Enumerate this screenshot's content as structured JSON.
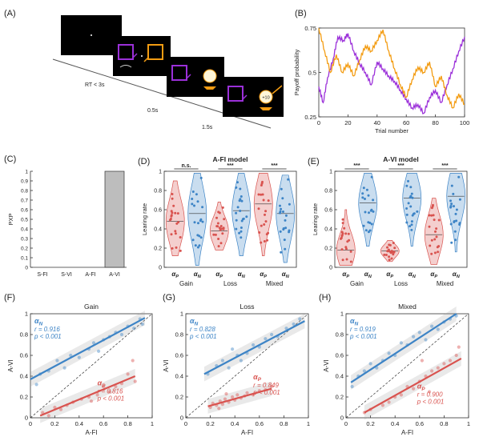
{
  "panel_letters": [
    "(A)",
    "(B)",
    "(C)",
    "(D)",
    "(E)",
    "(F)",
    "(G)",
    "(H)"
  ],
  "panelA": {
    "timings": [
      "RT < 3s",
      "0.5s",
      "1.5s"
    ],
    "reward_value": "+10",
    "colors": {
      "purple": "#9b30d9",
      "orange": "#f39c12",
      "screen": "#000000"
    }
  },
  "chart_data": [
    {
      "id": "B",
      "type": "line",
      "title": "",
      "xlabel": "Trial number",
      "ylabel": "Payoff probability",
      "xlim": [
        0,
        100
      ],
      "ylim": [
        0.25,
        0.75
      ],
      "xticks": [
        "0",
        "20",
        "40",
        "60",
        "80",
        "100"
      ],
      "yticks": [
        "0.25",
        "0.5",
        "0.75"
      ],
      "series": [
        {
          "color": "#9b30d9",
          "values": [
            [
              0,
              0.42
            ],
            [
              3,
              0.33
            ],
            [
              6,
              0.47
            ],
            [
              10,
              0.58
            ],
            [
              13,
              0.7
            ],
            [
              17,
              0.68
            ],
            [
              20,
              0.72
            ],
            [
              24,
              0.62
            ],
            [
              28,
              0.55
            ],
            [
              32,
              0.5
            ],
            [
              36,
              0.43
            ],
            [
              40,
              0.56
            ],
            [
              44,
              0.52
            ],
            [
              48,
              0.48
            ],
            [
              52,
              0.45
            ],
            [
              56,
              0.4
            ],
            [
              60,
              0.35
            ],
            [
              64,
              0.3
            ],
            [
              68,
              0.32
            ],
            [
              72,
              0.27
            ],
            [
              76,
              0.36
            ],
            [
              80,
              0.4
            ],
            [
              84,
              0.33
            ],
            [
              88,
              0.43
            ],
            [
              92,
              0.52
            ],
            [
              96,
              0.62
            ],
            [
              100,
              0.7
            ]
          ]
        },
        {
          "color": "#f39c12",
          "values": [
            [
              0,
              0.75
            ],
            [
              4,
              0.62
            ],
            [
              8,
              0.5
            ],
            [
              12,
              0.6
            ],
            [
              16,
              0.5
            ],
            [
              20,
              0.55
            ],
            [
              24,
              0.48
            ],
            [
              28,
              0.57
            ],
            [
              32,
              0.65
            ],
            [
              36,
              0.62
            ],
            [
              40,
              0.68
            ],
            [
              44,
              0.74
            ],
            [
              48,
              0.62
            ],
            [
              52,
              0.52
            ],
            [
              56,
              0.43
            ],
            [
              60,
              0.36
            ],
            [
              64,
              0.46
            ],
            [
              68,
              0.53
            ],
            [
              72,
              0.5
            ],
            [
              76,
              0.56
            ],
            [
              80,
              0.42
            ],
            [
              84,
              0.48
            ],
            [
              88,
              0.37
            ],
            [
              92,
              0.3
            ],
            [
              96,
              0.38
            ],
            [
              100,
              0.32
            ]
          ]
        }
      ]
    },
    {
      "id": "C",
      "type": "bar",
      "title": "",
      "xlabel": "",
      "ylabel": "PXP",
      "ylim": [
        0,
        1
      ],
      "yticks": [
        "0",
        "0.1",
        "0.2",
        "0.3",
        "0.4",
        "0.5",
        "0.6",
        "0.7",
        "0.8",
        "0.9",
        "1"
      ],
      "categories": [
        "S-FI",
        "S-VI",
        "A-FI",
        "A-VI"
      ],
      "values": [
        0.0,
        0.0,
        0.0,
        1.0
      ],
      "bar_color": "#bdbdbd"
    },
    {
      "id": "D",
      "type": "violin",
      "title": "A-FI model",
      "xlabel": "",
      "ylabel": "Learing rate",
      "ylim": [
        0,
        1
      ],
      "yticks": [
        "0",
        "0.2",
        "0.4",
        "0.6",
        "0.8",
        "1"
      ],
      "groups": [
        "Gain",
        "Loss",
        "Mixed"
      ],
      "params": [
        "αP",
        "αN"
      ],
      "significance": [
        "n.s.",
        "***",
        "***"
      ],
      "colors": {
        "αP": "#d9534f",
        "αN": "#3d84c6"
      },
      "medians": [
        0.48,
        0.56,
        0.38,
        0.59,
        0.66,
        0.56
      ],
      "ranges": [
        [
          0.12,
          0.9
        ],
        [
          0.02,
          0.98
        ],
        [
          0.18,
          0.68
        ],
        [
          0.12,
          0.98
        ],
        [
          0.12,
          0.98
        ],
        [
          0.05,
          0.96
        ]
      ]
    },
    {
      "id": "E",
      "type": "violin",
      "title": "A-VI model",
      "xlabel": "",
      "ylabel": "Learing rate",
      "ylim": [
        0,
        1
      ],
      "yticks": [
        "0",
        "0.2",
        "0.4",
        "0.6",
        "0.8",
        "1"
      ],
      "groups": [
        "Gain",
        "Loss",
        "Mixed"
      ],
      "params": [
        "αP",
        "αN"
      ],
      "significance": [
        "***",
        "***",
        "***"
      ],
      "colors": {
        "αP": "#d9534f",
        "αN": "#3d84c6"
      },
      "medians": [
        0.18,
        0.67,
        0.17,
        0.72,
        0.34,
        0.74
      ],
      "ranges": [
        [
          0.02,
          0.6
        ],
        [
          0.22,
          0.98
        ],
        [
          0.06,
          0.28
        ],
        [
          0.22,
          0.98
        ],
        [
          0.03,
          0.72
        ],
        [
          0.16,
          0.98
        ]
      ]
    },
    {
      "id": "F",
      "type": "scatter",
      "title": "Gain",
      "xlabel": "A-FI",
      "ylabel": "A-VI",
      "xlim": [
        0,
        1
      ],
      "ylim": [
        0,
        1
      ],
      "xticks": [
        "0",
        "0.2",
        "0.4",
        "0.6",
        "0.8",
        "1"
      ],
      "yticks": [
        "0",
        "0.2",
        "0.4",
        "0.6",
        "0.8",
        "1"
      ],
      "series": [
        {
          "name": "αN",
          "color": "#3d84c6",
          "r": "r = 0.916",
          "p": "p < 0.001",
          "fit": [
            [
              0,
              0.37
            ],
            [
              0.94,
              0.96
            ]
          ],
          "points": [
            [
              0.08,
              0.42
            ],
            [
              0.15,
              0.45
            ],
            [
              0.22,
              0.55
            ],
            [
              0.28,
              0.48
            ],
            [
              0.33,
              0.6
            ],
            [
              0.4,
              0.58
            ],
            [
              0.48,
              0.66
            ],
            [
              0.52,
              0.72
            ],
            [
              0.56,
              0.64
            ],
            [
              0.6,
              0.75
            ],
            [
              0.65,
              0.78
            ],
            [
              0.7,
              0.82
            ],
            [
              0.75,
              0.8
            ],
            [
              0.8,
              0.88
            ],
            [
              0.85,
              0.86
            ],
            [
              0.9,
              0.95
            ],
            [
              0.92,
              0.9
            ],
            [
              0.05,
              0.32
            ]
          ]
        },
        {
          "name": "αP",
          "color": "#d9534f",
          "r": "r = 0.816",
          "p": "p < 0.001",
          "fit": [
            [
              0.08,
              0.02
            ],
            [
              0.86,
              0.4
            ]
          ],
          "points": [
            [
              0.1,
              0.05
            ],
            [
              0.15,
              0.02
            ],
            [
              0.2,
              0.1
            ],
            [
              0.25,
              0.08
            ],
            [
              0.3,
              0.12
            ],
            [
              0.35,
              0.15
            ],
            [
              0.42,
              0.18
            ],
            [
              0.48,
              0.2
            ],
            [
              0.55,
              0.22
            ],
            [
              0.6,
              0.3
            ],
            [
              0.65,
              0.25
            ],
            [
              0.7,
              0.3
            ],
            [
              0.75,
              0.33
            ],
            [
              0.8,
              0.42
            ],
            [
              0.84,
              0.55
            ],
            [
              0.86,
              0.35
            ],
            [
              0.5,
              0.16
            ]
          ]
        }
      ]
    },
    {
      "id": "G",
      "type": "scatter",
      "title": "Loss",
      "xlabel": "A-FI",
      "ylabel": "A-VI",
      "xlim": [
        0,
        1
      ],
      "ylim": [
        0,
        1
      ],
      "xticks": [
        "0",
        "0.2",
        "0.4",
        "0.6",
        "0.8",
        "1"
      ],
      "yticks": [
        "0",
        "0.2",
        "0.4",
        "0.6",
        "0.8",
        "1"
      ],
      "series": [
        {
          "name": "αN",
          "color": "#3d84c6",
          "r": "r = 0.828",
          "p": "p < 0.001",
          "fit": [
            [
              0.15,
              0.42
            ],
            [
              0.97,
              0.93
            ]
          ],
          "points": [
            [
              0.18,
              0.42
            ],
            [
              0.25,
              0.5
            ],
            [
              0.3,
              0.55
            ],
            [
              0.35,
              0.48
            ],
            [
              0.42,
              0.6
            ],
            [
              0.5,
              0.62
            ],
            [
              0.55,
              0.7
            ],
            [
              0.6,
              0.68
            ],
            [
              0.65,
              0.76
            ],
            [
              0.7,
              0.8
            ],
            [
              0.75,
              0.78
            ],
            [
              0.82,
              0.86
            ],
            [
              0.88,
              0.9
            ],
            [
              0.93,
              0.95
            ],
            [
              0.45,
              0.55
            ],
            [
              0.38,
              0.66
            ]
          ]
        },
        {
          "name": "αP",
          "color": "#d9534f",
          "r": "r = 0.849",
          "p": "p < 0.001",
          "fit": [
            [
              0.18,
              0.11
            ],
            [
              0.7,
              0.28
            ]
          ],
          "points": [
            [
              0.2,
              0.1
            ],
            [
              0.22,
              0.14
            ],
            [
              0.25,
              0.12
            ],
            [
              0.28,
              0.16
            ],
            [
              0.3,
              0.13
            ],
            [
              0.32,
              0.18
            ],
            [
              0.35,
              0.15
            ],
            [
              0.38,
              0.2
            ],
            [
              0.4,
              0.17
            ],
            [
              0.42,
              0.22
            ],
            [
              0.45,
              0.19
            ],
            [
              0.48,
              0.21
            ],
            [
              0.5,
              0.24
            ],
            [
              0.55,
              0.22
            ],
            [
              0.6,
              0.26
            ],
            [
              0.65,
              0.27
            ],
            [
              0.7,
              0.3
            ],
            [
              0.27,
              0.09
            ],
            [
              0.33,
              0.23
            ]
          ]
        }
      ]
    },
    {
      "id": "H",
      "type": "scatter",
      "title": "Mixed",
      "xlabel": "A-FI",
      "ylabel": "A-VI",
      "xlim": [
        0,
        1
      ],
      "ylim": [
        0,
        1
      ],
      "xticks": [
        "0",
        "0.2",
        "0.4",
        "0.6",
        "0.8",
        "1"
      ],
      "yticks": [
        "0",
        "0.2",
        "0.4",
        "0.6",
        "0.8",
        "1"
      ],
      "series": [
        {
          "name": "αN",
          "color": "#3d84c6",
          "r": "r = 0.919",
          "p": "p < 0.001",
          "fit": [
            [
              0.04,
              0.34
            ],
            [
              0.9,
              1.0
            ]
          ],
          "points": [
            [
              0.05,
              0.3
            ],
            [
              0.1,
              0.4
            ],
            [
              0.15,
              0.45
            ],
            [
              0.2,
              0.52
            ],
            [
              0.3,
              0.55
            ],
            [
              0.35,
              0.62
            ],
            [
              0.4,
              0.6
            ],
            [
              0.45,
              0.72
            ],
            [
              0.5,
              0.7
            ],
            [
              0.55,
              0.78
            ],
            [
              0.6,
              0.82
            ],
            [
              0.65,
              0.75
            ],
            [
              0.7,
              0.88
            ],
            [
              0.75,
              0.85
            ],
            [
              0.8,
              0.92
            ],
            [
              0.85,
              0.95
            ],
            [
              0.9,
              0.98
            ],
            [
              0.25,
              0.48
            ]
          ]
        },
        {
          "name": "αP",
          "color": "#d9534f",
          "r": "r = 0.900",
          "p": "p < 0.001",
          "fit": [
            [
              0.15,
              0.05
            ],
            [
              0.94,
              0.57
            ]
          ],
          "points": [
            [
              0.15,
              0.05
            ],
            [
              0.2,
              0.08
            ],
            [
              0.3,
              0.12
            ],
            [
              0.35,
              0.15
            ],
            [
              0.4,
              0.2
            ],
            [
              0.45,
              0.22
            ],
            [
              0.5,
              0.3
            ],
            [
              0.55,
              0.28
            ],
            [
              0.6,
              0.35
            ],
            [
              0.62,
              0.55
            ],
            [
              0.65,
              0.4
            ],
            [
              0.7,
              0.45
            ],
            [
              0.75,
              0.48
            ],
            [
              0.8,
              0.52
            ],
            [
              0.85,
              0.55
            ],
            [
              0.9,
              0.6
            ],
            [
              0.92,
              0.68
            ],
            [
              0.68,
              0.25
            ]
          ]
        }
      ]
    }
  ]
}
